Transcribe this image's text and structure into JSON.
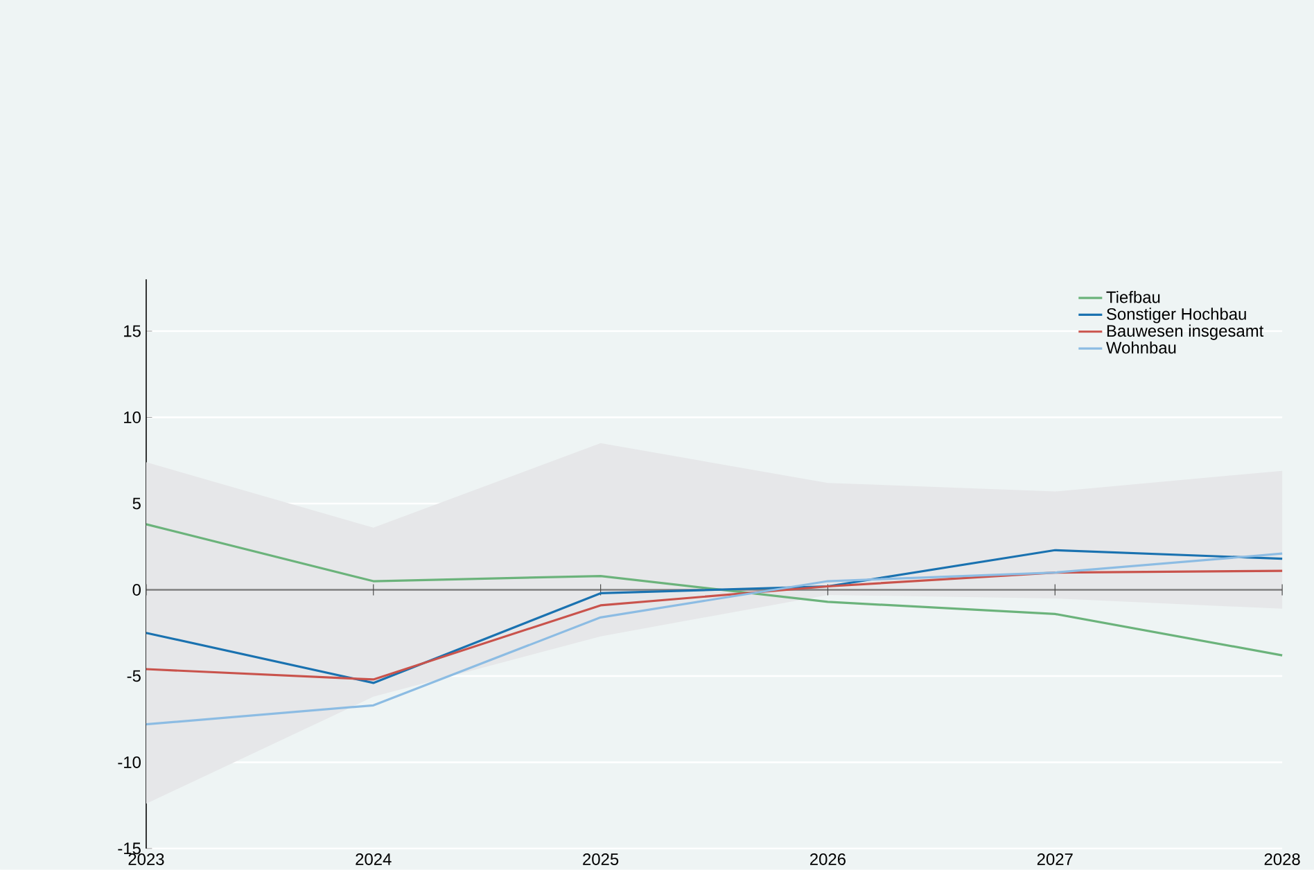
{
  "chart_data": {
    "type": "line",
    "x": [
      2023,
      2024,
      2025,
      2026,
      2027,
      2028
    ],
    "series": [
      {
        "name": "Tiefbau",
        "color": "#6bb37b",
        "values": [
          3.8,
          0.5,
          0.8,
          -0.7,
          -1.4,
          -3.8
        ]
      },
      {
        "name": "Sonstiger Hochbau",
        "color": "#1a72b0",
        "values": [
          -2.5,
          -5.4,
          -0.2,
          0.2,
          2.3,
          1.8
        ]
      },
      {
        "name": "Bauwesen insgesamt",
        "color": "#c9534c",
        "values": [
          -4.6,
          -5.2,
          -0.9,
          0.2,
          1.0,
          1.1
        ],
        "lower": [
          -12.4,
          -6.2,
          -2.7,
          -0.3,
          -0.5,
          -1.1
        ],
        "upper": [
          7.4,
          3.6,
          8.5,
          6.2,
          5.7,
          6.9
        ]
      },
      {
        "name": "Wohnbau",
        "color": "#8cbce3",
        "values": [
          -7.8,
          -6.7,
          -1.6,
          0.5,
          1.0,
          2.1
        ]
      }
    ],
    "xlim": [
      2023,
      2028
    ],
    "xticks": [
      2023,
      2024,
      2025,
      2026,
      2027,
      2028
    ],
    "ylim": [
      -15,
      18
    ],
    "yticks": [
      -15,
      -10,
      -5,
      0,
      5,
      10,
      15
    ],
    "ref_lines": [
      {
        "axis": "y",
        "value": 0,
        "color": "#7f7f7f"
      }
    ],
    "grid": "y",
    "legend": "top right",
    "marker": "none",
    "line_style": "solid"
  }
}
